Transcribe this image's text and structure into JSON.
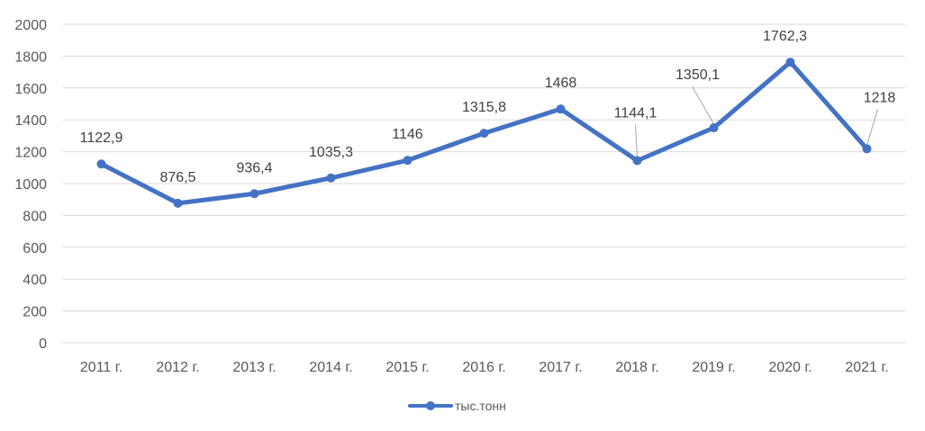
{
  "chart_data": {
    "type": "line",
    "title": "",
    "xlabel": "",
    "ylabel": "",
    "categories": [
      "2011 г.",
      "2012 г.",
      "2013 г.",
      "2014 г.",
      "2015 г.",
      "2016 г.",
      "2017 г.",
      "2018 г.",
      "2019 г.",
      "2020 г.",
      "2021 г."
    ],
    "series": [
      {
        "name": "тыс.тонн",
        "values": [
          1122.9,
          876.5,
          936.4,
          1035.3,
          1146,
          1315.8,
          1468,
          1144.1,
          1350.1,
          1762.3,
          1218
        ],
        "labels": [
          "1122,9",
          "876,5",
          "936,4",
          "1035,3",
          "1146",
          "1315,8",
          "1468",
          "1144,1",
          "1350,1",
          "1762,3",
          "1218"
        ]
      }
    ],
    "ylim": [
      0,
      2000
    ],
    "yticks": [
      0,
      200,
      400,
      600,
      800,
      1000,
      1200,
      1400,
      1600,
      1800,
      2000
    ],
    "grid": true,
    "legend": "bottom",
    "colors": {
      "line": "#4472C4",
      "grid": "#D9D9D9",
      "text": "#595959",
      "leader": "#A6A6A6"
    }
  }
}
